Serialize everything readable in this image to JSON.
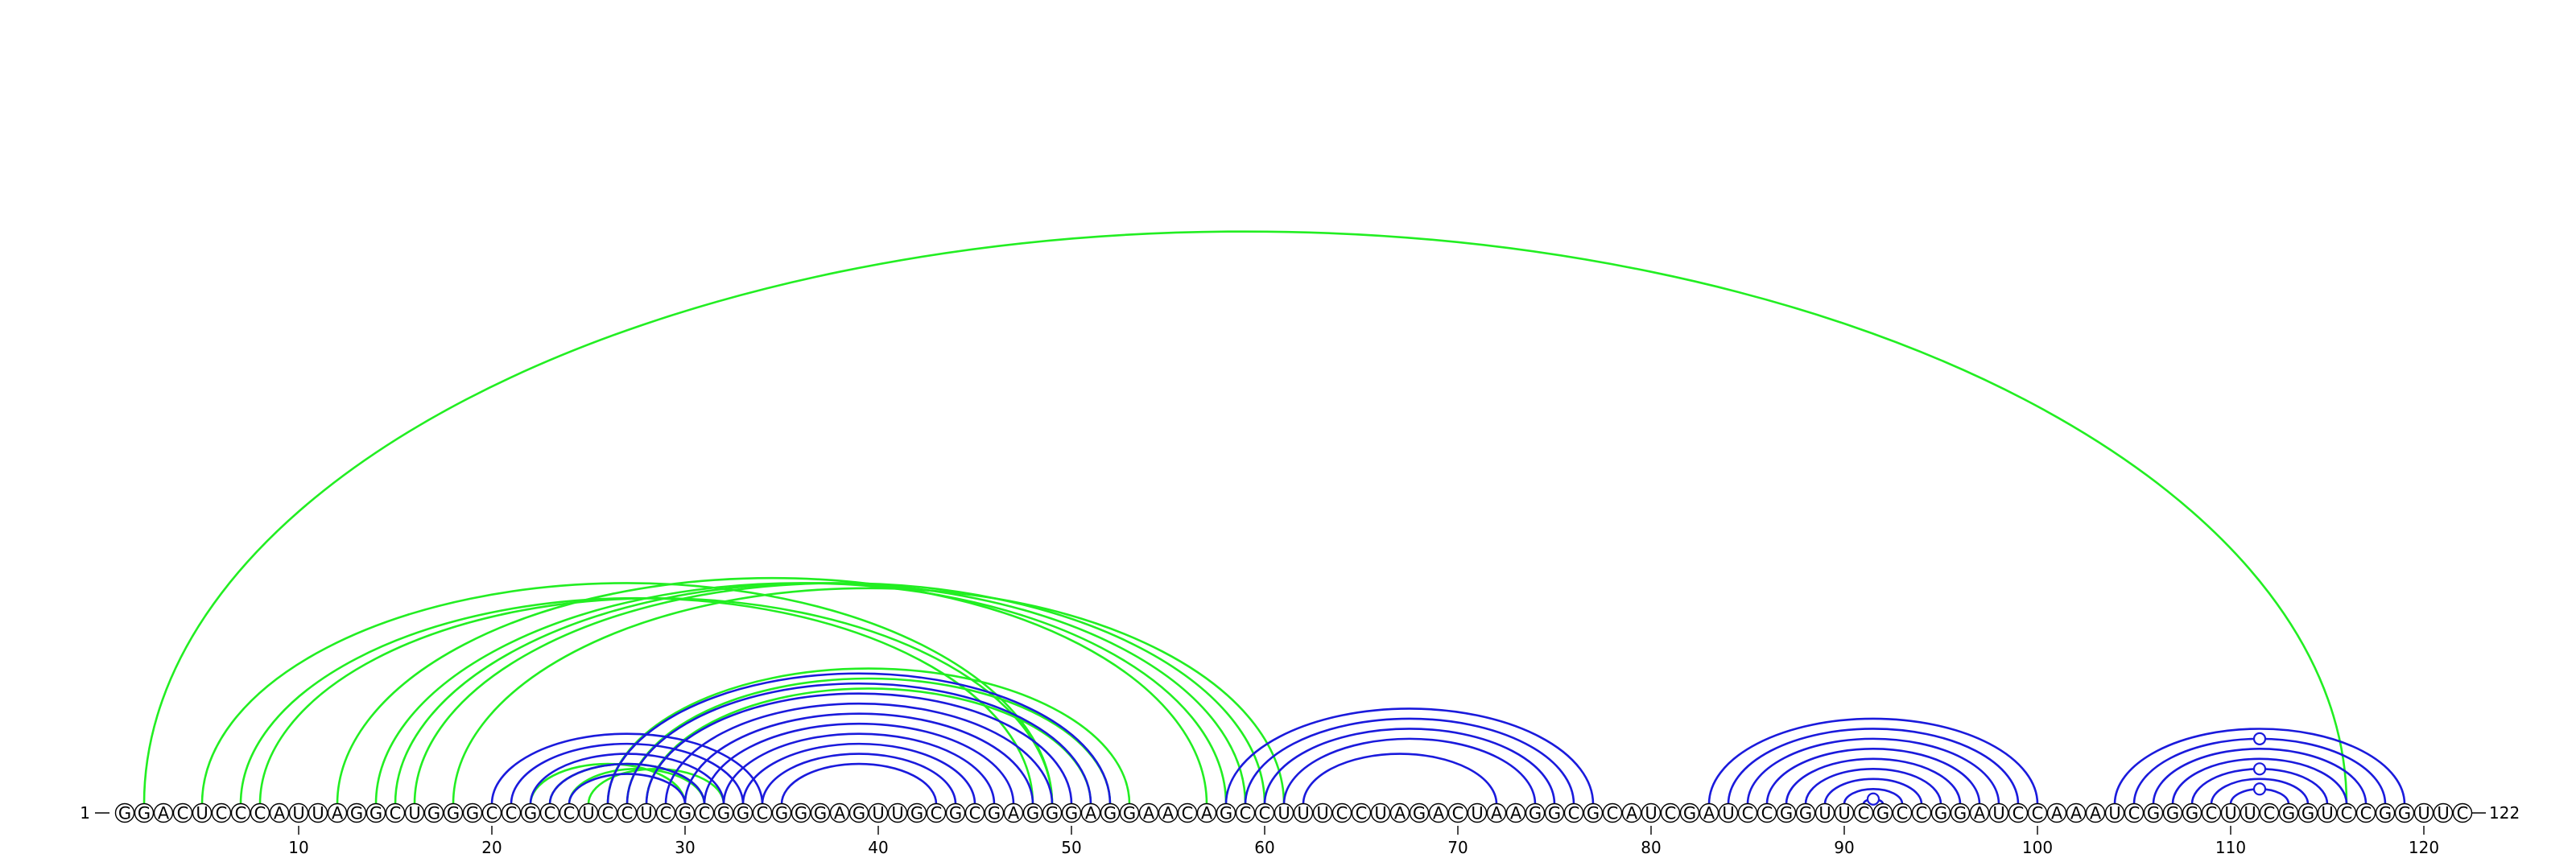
{
  "diagram": {
    "type": "rna-arc-diagram",
    "sequence": "GGACUCCCAUUAGGCUGGGCCGCCUCCUCGCGGCGGGAGUUGCGCGAGGGAGGAACAGCCUUUCCUAGACUAAGGCGCAUCGAUCCGGUUCGCCGGAUCCAAAUCGGGCUUCGGUCCGGUUC",
    "length": 122,
    "start_label": "1",
    "end_label": "122",
    "ticks": [
      10,
      20,
      30,
      40,
      50,
      60,
      70,
      80,
      90,
      100,
      110,
      120
    ],
    "colors": {
      "green": "#22ee22",
      "blue": "#1a1adc",
      "text": "#000000"
    },
    "arc_sets": [
      {
        "color": "green",
        "pairs": [
          [
            2,
            116
          ],
          [
            5,
            49
          ],
          [
            7,
            48
          ],
          [
            8,
            49
          ],
          [
            12,
            57
          ],
          [
            14,
            58
          ],
          [
            15,
            59
          ],
          [
            16,
            60
          ],
          [
            18,
            61
          ],
          [
            22,
            30
          ],
          [
            23,
            31
          ],
          [
            24,
            31
          ],
          [
            25,
            32
          ],
          [
            26,
            53
          ],
          [
            27,
            52
          ],
          [
            28,
            51
          ]
        ]
      },
      {
        "color": "blue",
        "pairs": [
          [
            20,
            34
          ],
          [
            21,
            33
          ],
          [
            22,
            32
          ],
          [
            23,
            31
          ],
          [
            24,
            30
          ],
          [
            26,
            52
          ],
          [
            27,
            51
          ],
          [
            28,
            50
          ],
          [
            29,
            49
          ],
          [
            30,
            48
          ],
          [
            31,
            47
          ],
          [
            32,
            46
          ],
          [
            33,
            45
          ],
          [
            34,
            44
          ],
          [
            35,
            43
          ],
          [
            58,
            77
          ],
          [
            59,
            76
          ],
          [
            60,
            75
          ],
          [
            61,
            74
          ],
          [
            62,
            72
          ],
          [
            83,
            100
          ],
          [
            84,
            99
          ],
          [
            85,
            98
          ],
          [
            86,
            97
          ],
          [
            87,
            96
          ],
          [
            88,
            95
          ],
          [
            89,
            94
          ],
          [
            90,
            93
          ],
          [
            91,
            92
          ],
          [
            104,
            119
          ],
          [
            105,
            118
          ],
          [
            106,
            117
          ],
          [
            107,
            116
          ],
          [
            108,
            115
          ],
          [
            109,
            114
          ],
          [
            110,
            113
          ]
        ],
        "markers": [
          91.5,
          111.5,
          111.5,
          111.5
        ]
      }
    ]
  }
}
